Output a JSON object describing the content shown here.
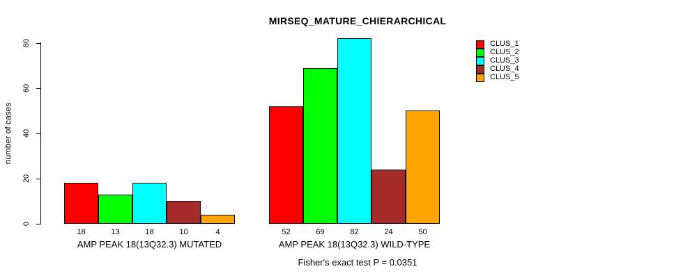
{
  "chart_data": {
    "type": "bar",
    "title": "MIRSEQ_MATURE_CHIERARCHICAL",
    "ylabel": "number of cases",
    "footer": "Fisher's exact test P = 0.0351",
    "categories": [
      "AMP PEAK 18(13Q32.3) MUTATED",
      "AMP PEAK 18(13Q32.3) WILD-TYPE"
    ],
    "series": [
      {
        "name": "CLUS_1",
        "color": "#FF0000",
        "values": [
          18,
          52
        ]
      },
      {
        "name": "CLUS_2",
        "color": "#00FF00",
        "values": [
          13,
          69
        ]
      },
      {
        "name": "CLUS_3",
        "color": "#00FFFF",
        "values": [
          18,
          82
        ]
      },
      {
        "name": "CLUS_4",
        "color": "#A52A2A",
        "values": [
          10,
          24
        ]
      },
      {
        "name": "CLUS_5",
        "color": "#FFA500",
        "values": [
          4,
          50
        ]
      }
    ],
    "ylim": [
      0,
      80
    ],
    "yticks": [
      0,
      20,
      40,
      60,
      80
    ],
    "grid": false,
    "legend_position": "right",
    "bar_borders_color": "#000000",
    "background_color": "#FFFFFF"
  }
}
